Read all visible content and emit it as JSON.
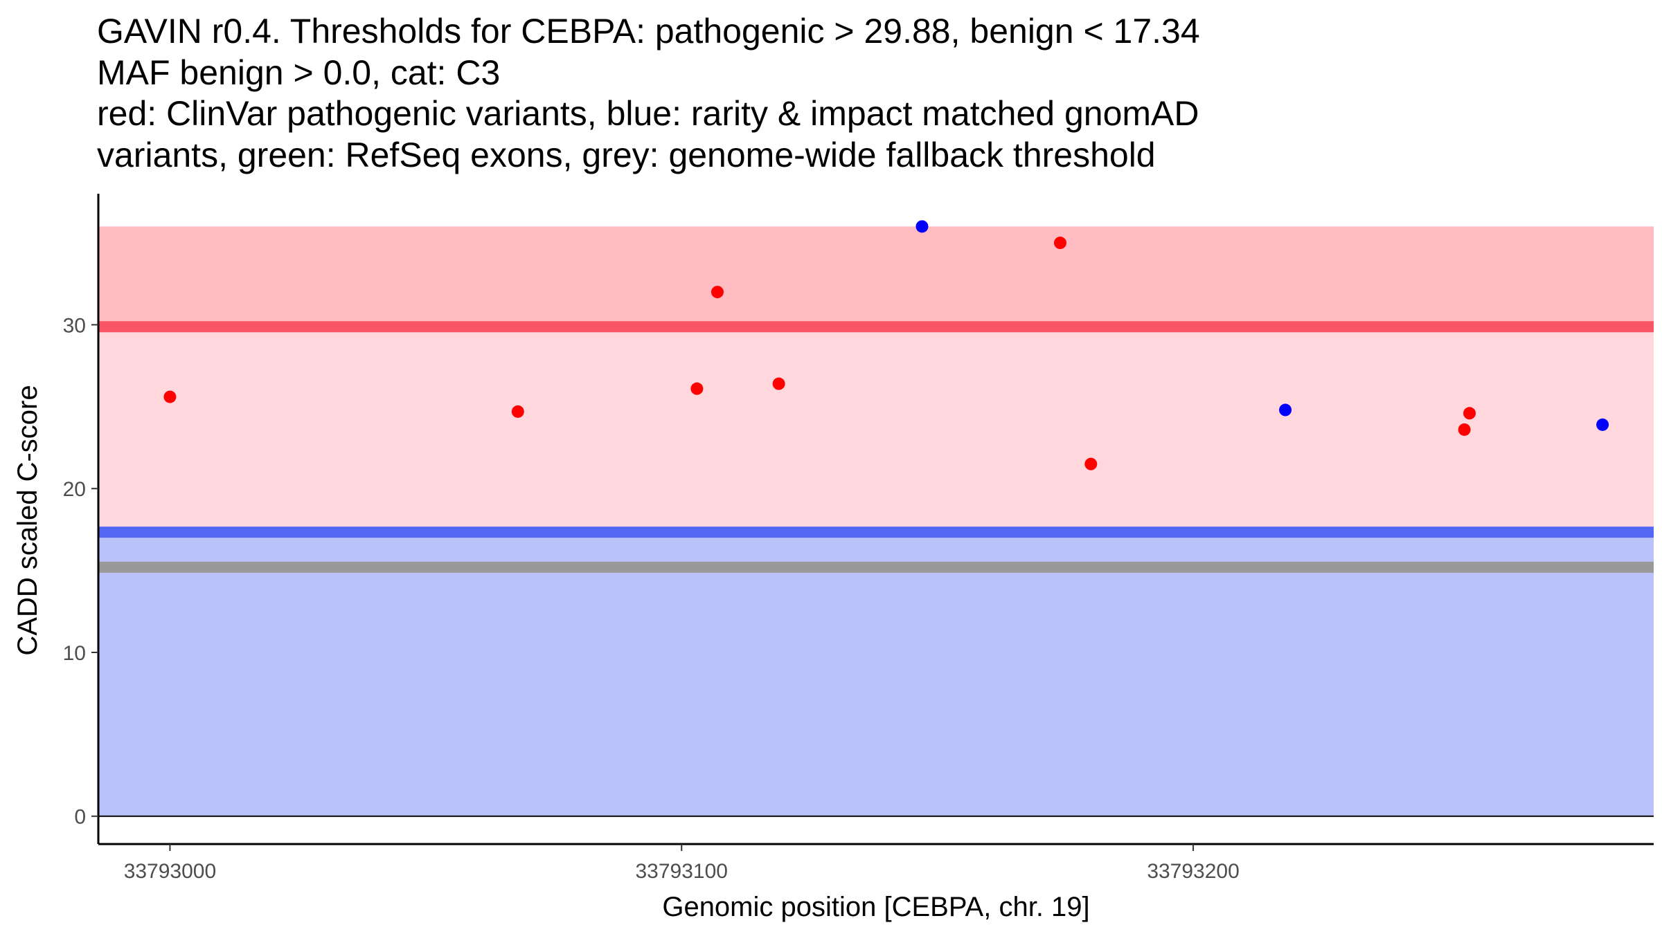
{
  "chart_data": {
    "type": "scatter",
    "title_lines": [
      "GAVIN r0.4. Thresholds for CEBPA: pathogenic > 29.88, benign < 17.34",
      "MAF benign > 0.0, cat: C3",
      "red: ClinVar pathogenic variants, blue: rarity & impact matched gnomAD",
      "variants, green: RefSeq exons, grey: genome-wide fallback threshold"
    ],
    "xlabel": "Genomic position [CEBPA, chr. 19]",
    "ylabel": "CADD scaled C-score",
    "xlim": [
      33792986,
      33793290
    ],
    "ylim": [
      -1.7,
      38
    ],
    "xticks": [
      33793000,
      33793100,
      33793200
    ],
    "xtick_labels": [
      "33793000",
      "33793100",
      "33793200"
    ],
    "yticks": [
      0,
      10,
      20,
      30
    ],
    "ytick_labels": [
      "0",
      "10",
      "20",
      "30"
    ],
    "regions": [
      {
        "name": "pathogenic-top-band",
        "y0": 29.88,
        "y1": 36,
        "color": "#ffbcc3"
      },
      {
        "name": "middle-band",
        "y0": 17.34,
        "y1": 29.88,
        "color": "#ffd7dd"
      },
      {
        "name": "benign-band",
        "y0": 0,
        "y1": 17.34,
        "color": "#bbc2fa"
      }
    ],
    "threshold_lines": [
      {
        "name": "pathogenic-threshold",
        "y": 29.88,
        "color": "#f95665"
      },
      {
        "name": "benign-threshold",
        "y": 17.34,
        "color": "#5367f4"
      },
      {
        "name": "fallback-threshold",
        "y": 15.2,
        "color": "#999999"
      }
    ],
    "series": [
      {
        "name": "ClinVar pathogenic",
        "color": "#ff0000",
        "x": [
          33793000,
          33793068,
          33793103,
          33793107,
          33793119,
          33793174,
          33793180,
          33793253,
          33793254
        ],
        "y": [
          25.6,
          24.7,
          26.1,
          32.0,
          26.4,
          35.0,
          21.5,
          23.6,
          24.6
        ]
      },
      {
        "name": "gnomAD matched",
        "color": "#0000ff",
        "x": [
          33793147,
          33793218,
          33793280
        ],
        "y": [
          36.0,
          24.8,
          23.9
        ]
      }
    ]
  }
}
